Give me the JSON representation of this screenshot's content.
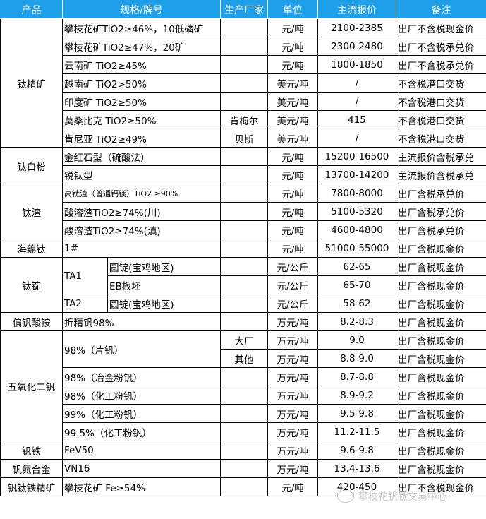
{
  "header": {
    "colors": {
      "header_bg": "#1e9fe8",
      "header_text": "#ffffff"
    },
    "columns": [
      "产品",
      "规格/牌号",
      "生产厂家",
      "单位",
      "主流报价",
      "备注"
    ]
  },
  "groups": [
    {
      "product": "钛精矿",
      "rows": [
        {
          "spec": "攀枝花矿TiO2≥46%，10低磷矿",
          "maker": "",
          "unit": "元/吨",
          "price": "2100-2385",
          "note": "出厂不含税现金价"
        },
        {
          "spec": "攀枝花矿TiO2≥47%，20矿",
          "maker": "",
          "unit": "元/吨",
          "price": "2300-2480",
          "note": "出厂不含税承兑价"
        },
        {
          "spec": "云南矿 TiO2≥45%",
          "maker": "",
          "unit": "元/吨",
          "price": "1800-1850",
          "note": "出厂不含税承兑价"
        },
        {
          "spec": "越南矿 TiO2>50%",
          "maker": "",
          "unit": "美元/吨",
          "price": "/",
          "note": "不含税港口交货"
        },
        {
          "spec": "印度矿 TiO2≥50%",
          "maker": "",
          "unit": "美元/吨",
          "price": "/",
          "note": "不含税港口交货"
        },
        {
          "spec": "莫桑比克 TiO2≥50%",
          "maker": "肯梅尔",
          "unit": "美元/吨",
          "price": "415",
          "note": "不含税港口交货"
        },
        {
          "spec": "肯尼亚 TiO2≥49%",
          "maker": "贝斯",
          "unit": "美元/吨",
          "price": "/",
          "note": "不含税港口交货"
        }
      ]
    },
    {
      "product": "钛白粉",
      "rows": [
        {
          "spec": "金红石型（硫酸法）",
          "maker": "",
          "unit": "元/吨",
          "price": "15200-16500",
          "note": "主流报价含税承兑"
        },
        {
          "spec": "锐钛型",
          "maker": "",
          "unit": "元/吨",
          "price": "13700-14200",
          "note": "主流报价含税承兑"
        }
      ]
    },
    {
      "product": "钛渣",
      "rows": [
        {
          "spec": "高钛渣（普通钙镁）TiO2 ≥90%",
          "maker": "",
          "unit": "元/吨",
          "price": "7800-8000",
          "note": "出厂含税承兑价"
        },
        {
          "spec": "酸溶渣TiO2≥74%(川)",
          "maker": "",
          "unit": "元/吨",
          "price": "5100-5320",
          "note": "出厂含税承兑价"
        },
        {
          "spec": "酸溶渣TiO2≥74%(滇)",
          "maker": "",
          "unit": "元/吨",
          "price": "4600-4800",
          "note": "出厂含税承兑价"
        }
      ]
    },
    {
      "product": "海绵钛",
      "rows": [
        {
          "spec": "1#",
          "maker": "",
          "unit": "元/吨",
          "price": "51000-55000",
          "note": "出厂含税现金价"
        }
      ]
    },
    {
      "product": "钛锭",
      "rows": [
        {
          "spec": "TA1",
          "grade": "圆锭(宝鸡地区)",
          "unit": "元/公斤",
          "price": "62-65",
          "note": "出厂含税现金价"
        },
        {
          "spec": "TA1",
          "grade": "EB板坯",
          "unit": "元/公斤",
          "price": "65-70",
          "note": "出厂含税现金价"
        },
        {
          "spec": "TA2",
          "grade": "圆锭(宝鸡地区)",
          "unit": "元/公斤",
          "price": "58-62",
          "note": "出厂含税现金价"
        }
      ]
    },
    {
      "product": "偏钒酸铵",
      "rows": [
        {
          "spec": "折精钒98%",
          "maker": "",
          "unit": "万元/吨",
          "price": "8.2-8.3",
          "note": "出厂含税现金价"
        }
      ]
    },
    {
      "product": "五氧化二钒",
      "rows": [
        {
          "spec": "98%（片钒）",
          "maker": "大厂",
          "unit": "万元/吨",
          "price": "9.0",
          "note": "出厂含税现金价"
        },
        {
          "spec": "98%（片钒）",
          "maker": "其他",
          "unit": "万元/吨",
          "price": "8.8-9.0",
          "note": "出厂含税现金价"
        },
        {
          "spec": "98%（冶金粉钒）",
          "maker": "",
          "unit": "万元/吨",
          "price": "8.7-8.8",
          "note": "出厂含税现金价"
        },
        {
          "spec": "98%（化工粉钒）",
          "maker": "",
          "unit": "万元/吨",
          "price": "8.9-9.2",
          "note": "出厂含税现金价"
        },
        {
          "spec": "99%（化工粉钒）",
          "maker": "",
          "unit": "万元/吨",
          "price": "9.5-9.8",
          "note": "出厂含税现金价"
        },
        {
          "spec": "99.5%（化工粉钒）",
          "maker": "",
          "unit": "万元/吨",
          "price": "11.2-11.5",
          "note": "出厂含税现金价"
        }
      ]
    },
    {
      "product": "钒铁",
      "rows": [
        {
          "spec": "FeV50",
          "maker": "",
          "unit": "万元/吨",
          "price": "9.6-9.8",
          "note": "出厂含税现金价"
        }
      ]
    },
    {
      "product": "钒氮合金",
      "rows": [
        {
          "spec": "VN16",
          "maker": "",
          "unit": "万元/吨",
          "price": "13.4-13.6",
          "note": "出厂含税现金价"
        }
      ]
    },
    {
      "product": "钒钛铁精矿",
      "rows": [
        {
          "spec": "攀枝花矿 Fe≥54%",
          "maker": "",
          "unit": "元/吨",
          "price": "420-450",
          "note": "出厂不含税现金价"
        }
      ]
    }
  ],
  "watermark": {
    "text": "攀枝花钒钛交易中心",
    "icon": "wechat-icon"
  }
}
